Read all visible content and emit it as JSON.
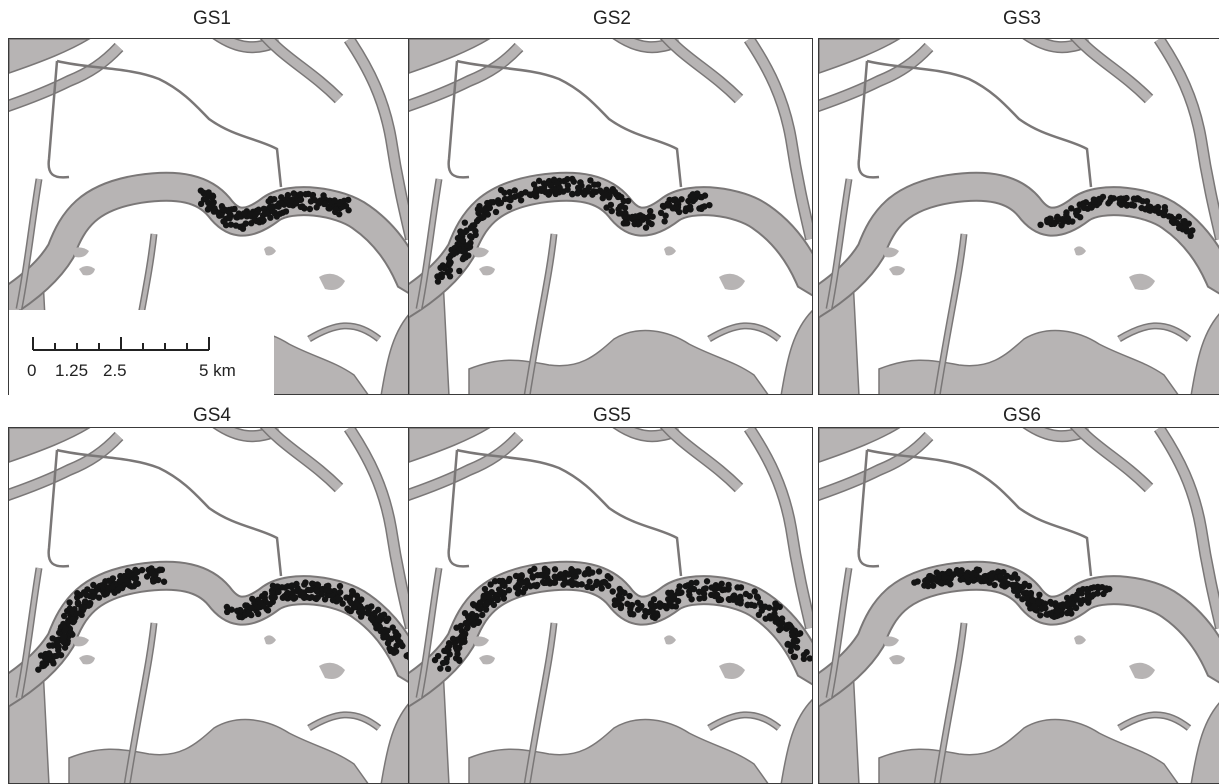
{
  "panels": [
    {
      "title": "GS1"
    },
    {
      "title": "GS2"
    },
    {
      "title": "GS3"
    },
    {
      "title": "GS4"
    },
    {
      "title": "GS5"
    },
    {
      "title": "GS6"
    }
  ],
  "scale_bar": {
    "labels": [
      "0",
      "1.25",
      "2.5",
      "5 km"
    ]
  },
  "colors": {
    "water": "#b7b4b4",
    "land": "#ffffff",
    "outline": "#7a7777",
    "track": "#141414"
  }
}
